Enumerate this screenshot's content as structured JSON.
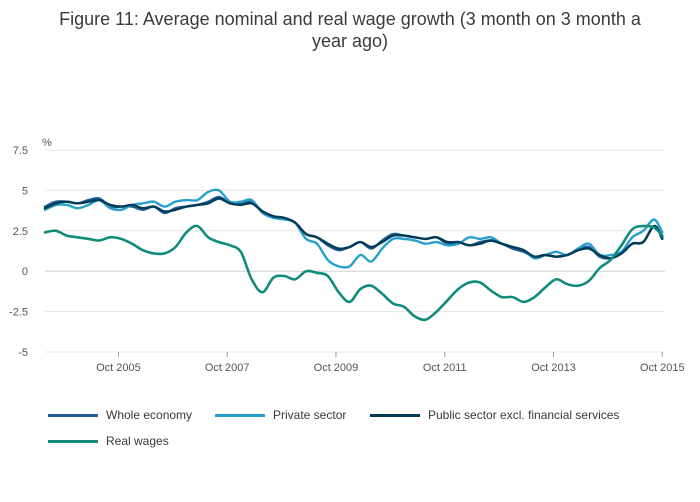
{
  "title_line1": "Figure 11: Average nominal and real wage growth (3 month on 3 month a",
  "title_line2": "year ago)",
  "chart_data": {
    "type": "line",
    "ylabel": "%",
    "ylim": [
      -5,
      7.5
    ],
    "yticks": [
      7.5,
      5,
      2.5,
      0,
      -2.5,
      -5
    ],
    "ytick_labels": [
      "7.5",
      "5",
      "2.5",
      "0",
      "-2.5",
      "-5"
    ],
    "xlim": [
      2004.4,
      2015.8
    ],
    "xticks": [
      2005.75,
      2007.75,
      2009.75,
      2011.75,
      2013.75,
      2015.75
    ],
    "xtick_labels": [
      "Oct 2005",
      "Oct 2007",
      "Oct 2009",
      "Oct 2011",
      "Oct 2013",
      "Oct 2015"
    ],
    "grid": true,
    "series": [
      {
        "name": "Whole economy",
        "color": "#206095",
        "x": [
          2004.4,
          2004.6,
          2004.8,
          2005.0,
          2005.2,
          2005.4,
          2005.6,
          2005.8,
          2006.0,
          2006.2,
          2006.4,
          2006.6,
          2006.8,
          2007.0,
          2007.2,
          2007.4,
          2007.6,
          2007.8,
          2008.0,
          2008.2,
          2008.4,
          2008.6,
          2008.8,
          2009.0,
          2009.2,
          2009.4,
          2009.6,
          2009.8,
          2010.0,
          2010.2,
          2010.4,
          2010.6,
          2010.8,
          2011.0,
          2011.2,
          2011.4,
          2011.6,
          2011.8,
          2012.0,
          2012.2,
          2012.4,
          2012.6,
          2012.8,
          2013.0,
          2013.2,
          2013.4,
          2013.6,
          2013.8,
          2014.0,
          2014.2,
          2014.4,
          2014.6,
          2014.8,
          2015.0,
          2015.2,
          2015.4,
          2015.6,
          2015.75
        ],
        "values": [
          4.0,
          4.3,
          4.3,
          4.2,
          4.4,
          4.5,
          4.0,
          4.0,
          4.0,
          3.8,
          4.0,
          3.6,
          3.9,
          4.0,
          4.1,
          4.3,
          4.6,
          4.2,
          4.2,
          4.3,
          3.7,
          3.4,
          3.3,
          3.0,
          2.3,
          2.1,
          1.6,
          1.3,
          1.5,
          1.8,
          1.4,
          1.9,
          2.3,
          2.2,
          2.1,
          2.0,
          2.1,
          1.7,
          1.8,
          1.6,
          1.8,
          1.9,
          1.7,
          1.4,
          1.2,
          0.9,
          1.0,
          0.9,
          1.0,
          1.3,
          1.5,
          0.9,
          0.8,
          1.1,
          1.7,
          1.8,
          2.8,
          2.1
        ]
      },
      {
        "name": "Private sector",
        "color": "#27a0cc",
        "x": [
          2004.4,
          2004.6,
          2004.8,
          2005.0,
          2005.2,
          2005.4,
          2005.6,
          2005.8,
          2006.0,
          2006.2,
          2006.4,
          2006.6,
          2006.8,
          2007.0,
          2007.2,
          2007.4,
          2007.6,
          2007.8,
          2008.0,
          2008.2,
          2008.4,
          2008.6,
          2008.8,
          2009.0,
          2009.2,
          2009.4,
          2009.6,
          2009.8,
          2010.0,
          2010.2,
          2010.4,
          2010.6,
          2010.8,
          2011.0,
          2011.2,
          2011.4,
          2011.6,
          2011.8,
          2012.0,
          2012.2,
          2012.4,
          2012.6,
          2012.8,
          2013.0,
          2013.2,
          2013.4,
          2013.6,
          2013.8,
          2014.0,
          2014.2,
          2014.4,
          2014.6,
          2014.8,
          2015.0,
          2015.2,
          2015.4,
          2015.6,
          2015.75
        ],
        "values": [
          3.8,
          4.1,
          4.1,
          3.9,
          4.1,
          4.4,
          3.9,
          3.8,
          4.1,
          4.2,
          4.3,
          4.0,
          4.3,
          4.4,
          4.4,
          4.9,
          5.0,
          4.3,
          4.3,
          4.4,
          3.6,
          3.3,
          3.2,
          3.0,
          2.0,
          1.7,
          0.7,
          0.3,
          0.3,
          1.0,
          0.6,
          1.4,
          2.0,
          2.0,
          1.9,
          1.7,
          1.8,
          1.6,
          1.7,
          2.1,
          2.0,
          2.1,
          1.7,
          1.5,
          1.3,
          0.8,
          1.0,
          1.2,
          1.0,
          1.4,
          1.7,
          1.0,
          1.0,
          1.2,
          2.1,
          2.5,
          3.2,
          2.4
        ]
      },
      {
        "name": "Public sector excl. financial services",
        "color": "#003c57",
        "x": [
          2004.4,
          2004.6,
          2004.8,
          2005.0,
          2005.2,
          2005.4,
          2005.6,
          2005.8,
          2006.0,
          2006.2,
          2006.4,
          2006.6,
          2006.8,
          2007.0,
          2007.2,
          2007.4,
          2007.6,
          2007.8,
          2008.0,
          2008.2,
          2008.4,
          2008.6,
          2008.8,
          2009.0,
          2009.2,
          2009.4,
          2009.6,
          2009.8,
          2010.0,
          2010.2,
          2010.4,
          2010.6,
          2010.8,
          2011.0,
          2011.2,
          2011.4,
          2011.6,
          2011.8,
          2012.0,
          2012.2,
          2012.4,
          2012.6,
          2012.8,
          2013.0,
          2013.2,
          2013.4,
          2013.6,
          2013.8,
          2014.0,
          2014.2,
          2014.4,
          2014.6,
          2014.8,
          2015.0,
          2015.2,
          2015.4,
          2015.6,
          2015.75
        ],
        "values": [
          3.9,
          4.2,
          4.3,
          4.2,
          4.3,
          4.4,
          4.1,
          4.0,
          4.1,
          3.9,
          4.0,
          3.7,
          3.8,
          4.0,
          4.1,
          4.2,
          4.5,
          4.2,
          4.1,
          4.2,
          3.7,
          3.4,
          3.3,
          3.0,
          2.3,
          2.1,
          1.7,
          1.4,
          1.5,
          1.8,
          1.5,
          1.8,
          2.2,
          2.2,
          2.1,
          2.0,
          2.1,
          1.8,
          1.8,
          1.6,
          1.7,
          1.9,
          1.7,
          1.5,
          1.3,
          0.9,
          1.0,
          0.9,
          1.0,
          1.3,
          1.4,
          1.0,
          0.8,
          1.1,
          1.7,
          1.8,
          2.8,
          2.0
        ]
      },
      {
        "name": "Real wages",
        "color": "#118c7b",
        "x": [
          2004.4,
          2004.6,
          2004.8,
          2005.0,
          2005.2,
          2005.4,
          2005.6,
          2005.8,
          2006.0,
          2006.2,
          2006.4,
          2006.6,
          2006.8,
          2007.0,
          2007.2,
          2007.4,
          2007.6,
          2007.8,
          2008.0,
          2008.2,
          2008.4,
          2008.6,
          2008.8,
          2009.0,
          2009.2,
          2009.4,
          2009.6,
          2009.8,
          2010.0,
          2010.2,
          2010.4,
          2010.6,
          2010.8,
          2011.0,
          2011.2,
          2011.4,
          2011.6,
          2011.8,
          2012.0,
          2012.2,
          2012.4,
          2012.6,
          2012.8,
          2013.0,
          2013.2,
          2013.4,
          2013.6,
          2013.8,
          2014.0,
          2014.2,
          2014.4,
          2014.6,
          2014.8,
          2015.0,
          2015.2,
          2015.4,
          2015.6,
          2015.75
        ],
        "values": [
          2.4,
          2.5,
          2.2,
          2.1,
          2.0,
          1.9,
          2.1,
          2.0,
          1.7,
          1.3,
          1.1,
          1.1,
          1.5,
          2.4,
          2.8,
          2.1,
          1.8,
          1.6,
          1.2,
          -0.5,
          -1.3,
          -0.4,
          -0.3,
          -0.5,
          0.0,
          -0.1,
          -0.3,
          -1.3,
          -1.9,
          -1.1,
          -0.9,
          -1.4,
          -2.0,
          -2.2,
          -2.8,
          -3.0,
          -2.5,
          -1.8,
          -1.1,
          -0.7,
          -0.7,
          -1.2,
          -1.6,
          -1.6,
          -1.9,
          -1.6,
          -1.0,
          -0.5,
          -0.8,
          -0.9,
          -0.6,
          0.2,
          0.7,
          1.6,
          2.6,
          2.8,
          2.7,
          2.2
        ]
      }
    ],
    "legend": [
      "Whole economy",
      "Private sector",
      "Public sector excl. financial services",
      "Real wages"
    ]
  }
}
